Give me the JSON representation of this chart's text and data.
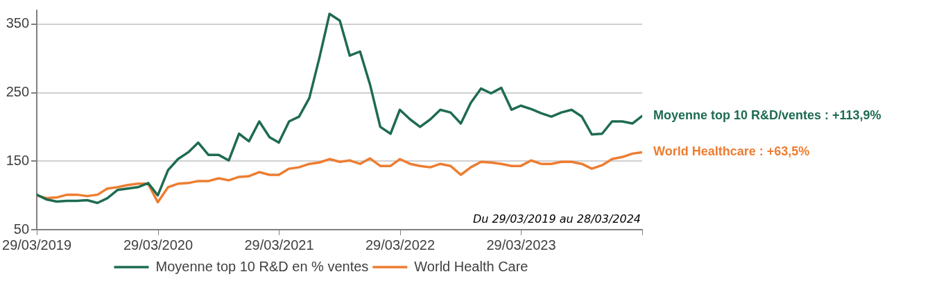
{
  "chart_data": {
    "type": "line",
    "x": [
      "2019-03-29",
      "2019-04-28",
      "2019-05-28",
      "2019-06-28",
      "2019-07-28",
      "2019-08-28",
      "2019-09-28",
      "2019-10-28",
      "2019-11-28",
      "2019-12-28",
      "2020-01-28",
      "2020-02-28",
      "2020-03-28",
      "2020-04-28",
      "2020-05-28",
      "2020-06-28",
      "2020-07-28",
      "2020-08-28",
      "2020-09-28",
      "2020-10-28",
      "2020-11-28",
      "2020-12-28",
      "2021-01-28",
      "2021-02-28",
      "2021-03-28",
      "2021-04-28",
      "2021-05-28",
      "2021-06-28",
      "2021-07-28",
      "2021-08-28",
      "2021-09-28",
      "2021-10-28",
      "2021-11-28",
      "2021-12-28",
      "2022-01-28",
      "2022-02-28",
      "2022-03-28",
      "2022-04-28",
      "2022-05-28",
      "2022-06-28",
      "2022-07-28",
      "2022-08-28",
      "2022-09-28",
      "2022-10-28",
      "2022-11-28",
      "2022-12-28",
      "2023-01-28",
      "2023-02-28",
      "2023-03-28",
      "2023-04-28",
      "2023-05-28",
      "2023-06-28",
      "2023-07-28",
      "2023-08-28",
      "2023-09-28",
      "2023-10-28",
      "2023-11-28",
      "2023-12-28",
      "2024-01-28",
      "2024-02-28",
      "2024-03-28"
    ],
    "series": [
      {
        "name": "Moyenne top 10 R&D en % ventes",
        "color": "#1e6b52",
        "values": [
          101,
          94,
          91,
          92,
          92,
          93,
          89,
          96,
          108,
          110,
          112,
          118,
          100,
          137,
          153,
          163,
          177,
          159,
          159,
          151,
          190,
          179,
          208,
          185,
          177,
          208,
          215,
          242,
          300,
          365,
          355,
          304,
          310,
          262,
          200,
          190,
          225,
          211,
          200,
          211,
          225,
          221,
          205,
          235,
          256,
          249,
          257,
          225,
          231,
          226,
          220,
          215,
          221,
          225,
          215,
          189,
          190,
          208,
          208,
          205,
          216
        ]
      },
      {
        "name": "World Health Care",
        "color": "#ed7d31",
        "values": [
          100,
          96,
          97,
          101,
          101,
          99,
          101,
          110,
          112,
          115,
          117,
          117,
          90,
          112,
          117,
          118,
          121,
          121,
          125,
          122,
          127,
          128,
          134,
          130,
          130,
          139,
          141,
          146,
          148,
          153,
          149,
          151,
          146,
          154,
          143,
          143,
          153,
          146,
          143,
          141,
          146,
          143,
          130,
          141,
          149,
          148,
          146,
          143,
          143,
          151,
          146,
          146,
          149,
          149,
          146,
          139,
          144,
          153,
          156,
          161,
          163
        ]
      }
    ],
    "xlim": [
      "2019-03-29",
      "2024-03-28"
    ],
    "xticks": [
      {
        "value": "2019-03-29",
        "label": "29/03/2019"
      },
      {
        "value": "2020-03-29",
        "label": "29/03/2020"
      },
      {
        "value": "2021-03-29",
        "label": "29/03/2021"
      },
      {
        "value": "2022-03-29",
        "label": "29/03/2022"
      },
      {
        "value": "2023-03-29",
        "label": "29/03/2023"
      },
      {
        "value": "2024-03-28",
        "label": null
      }
    ],
    "ylim": [
      50,
      370
    ],
    "yticks": [
      50,
      150,
      250,
      350
    ],
    "grid": "y",
    "legend": "bottom",
    "marker": "none",
    "line_style": "solid",
    "annotations": [
      {
        "text": "Moyenne top 10 R&D/ventes : +113,9%",
        "x": "2024-03-28",
        "y": 216
      },
      {
        "text": "World Healthcare : +63,5%",
        "x": "2024-03-28",
        "y": 163
      },
      "Du 29/03/2019 au 28/03/2024"
    ]
  }
}
